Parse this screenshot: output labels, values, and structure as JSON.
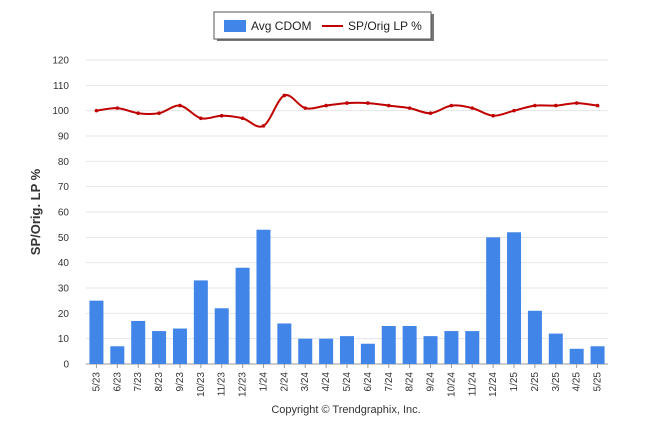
{
  "chart_data": {
    "type": "bar",
    "ylabel": "SP/Orig. LP %",
    "ylim": [
      0,
      120
    ],
    "yticks": [
      0,
      10,
      20,
      30,
      40,
      50,
      60,
      70,
      80,
      90,
      100,
      110,
      120
    ],
    "grid": true,
    "legend_position": "top-center",
    "categories": [
      "5/23",
      "6/23",
      "7/23",
      "8/23",
      "9/23",
      "10/23",
      "11/23",
      "12/23",
      "1/24",
      "2/24",
      "3/24",
      "4/24",
      "5/24",
      "6/24",
      "7/24",
      "8/24",
      "9/24",
      "10/24",
      "11/24",
      "12/24",
      "1/25",
      "2/25",
      "3/25",
      "4/25",
      "5/25"
    ],
    "series": [
      {
        "name": "Avg CDOM",
        "type": "bar",
        "color": "#4285e8",
        "values": [
          25,
          7,
          17,
          13,
          14,
          33,
          22,
          38,
          53,
          16,
          10,
          10,
          11,
          8,
          15,
          15,
          11,
          13,
          13,
          50,
          52,
          21,
          12,
          6,
          7
        ]
      },
      {
        "name": "SP/Orig LP %",
        "type": "line",
        "color": "#c00000",
        "values": [
          100,
          101,
          99,
          99,
          102,
          97,
          98,
          97,
          94,
          106,
          101,
          102,
          103,
          103,
          102,
          101,
          99,
          102,
          101,
          98,
          100,
          102,
          102,
          103,
          102
        ]
      }
    ]
  },
  "footer": {
    "copyright": "Copyright © Trendgraphix, Inc."
  }
}
